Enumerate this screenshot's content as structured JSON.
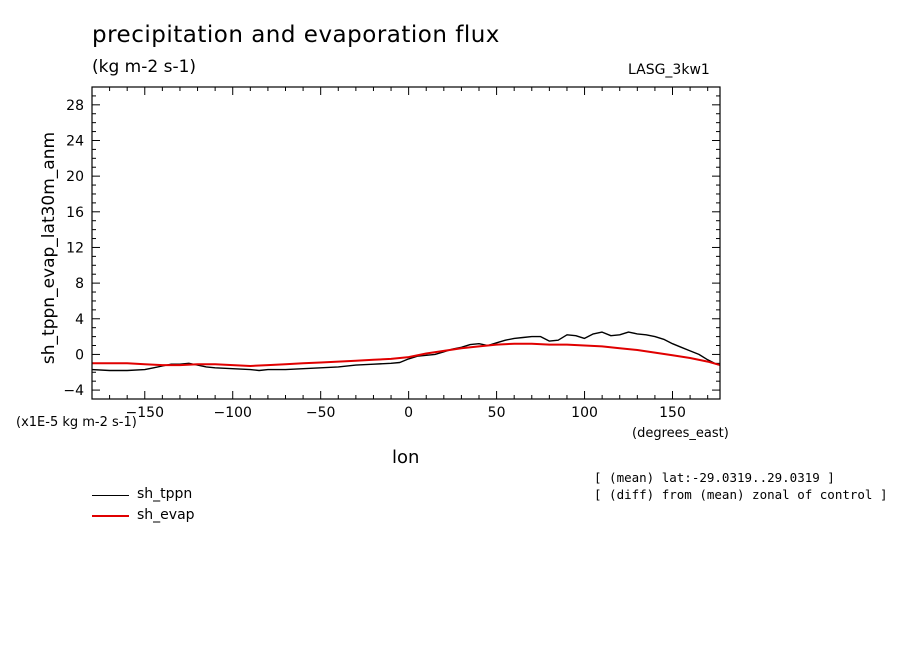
{
  "header": {
    "title": "precipitation and evaporation flux",
    "units": "(kg m-2 s-1)",
    "model": "LASG_3kw1"
  },
  "notes": {
    "mean": "[ (mean) lat:-29.0319..29.0319 ]",
    "diff": "[ (diff) from (mean) zonal of control ]"
  },
  "colors": {
    "sh_tppn": "#000000",
    "sh_evap": "#e00000"
  },
  "chart_data": {
    "type": "line",
    "title": "precipitation and evaporation flux",
    "subtitle": "(kg m-2 s-1)",
    "xlabel": "lon",
    "ylabel": "sh_tppn_evap_lat30m_anm",
    "x_units": "(degrees_east)",
    "y_units": "(x1E-5 kg m-2 s-1)",
    "xlim": [
      -180,
      177
    ],
    "ylim": [
      -5,
      30
    ],
    "xticks": [
      -150,
      -100,
      -50,
      0,
      50,
      100,
      150
    ],
    "yticks": [
      -4,
      0,
      4,
      8,
      12,
      16,
      20,
      24,
      28
    ],
    "legend_position": "bottom-left",
    "series": [
      {
        "name": "sh_tppn",
        "color": "#000000",
        "x": [
          -180,
          -170,
          -160,
          -150,
          -145,
          -140,
          -135,
          -130,
          -125,
          -120,
          -115,
          -110,
          -100,
          -90,
          -85,
          -80,
          -70,
          -60,
          -50,
          -40,
          -30,
          -20,
          -10,
          -5,
          0,
          5,
          10,
          15,
          20,
          25,
          30,
          35,
          40,
          45,
          50,
          55,
          60,
          65,
          70,
          75,
          80,
          85,
          90,
          95,
          100,
          105,
          110,
          115,
          120,
          125,
          130,
          135,
          140,
          145,
          150,
          155,
          160,
          165,
          170,
          175,
          177
        ],
        "y": [
          -1.7,
          -1.8,
          -1.8,
          -1.7,
          -1.5,
          -1.3,
          -1.1,
          -1.1,
          -1.0,
          -1.2,
          -1.4,
          -1.5,
          -1.6,
          -1.7,
          -1.8,
          -1.7,
          -1.7,
          -1.6,
          -1.5,
          -1.4,
          -1.2,
          -1.1,
          -1.0,
          -0.9,
          -0.5,
          -0.2,
          -0.1,
          0.0,
          0.3,
          0.6,
          0.8,
          1.1,
          1.2,
          1.0,
          1.3,
          1.6,
          1.8,
          1.9,
          2.0,
          2.0,
          1.5,
          1.6,
          2.2,
          2.1,
          1.8,
          2.3,
          2.5,
          2.1,
          2.2,
          2.5,
          2.3,
          2.2,
          2.0,
          1.7,
          1.2,
          0.8,
          0.4,
          0.0,
          -0.6,
          -1.1,
          -1.2
        ]
      },
      {
        "name": "sh_evap",
        "color": "#e00000",
        "x": [
          -180,
          -170,
          -160,
          -150,
          -140,
          -130,
          -120,
          -110,
          -100,
          -90,
          -80,
          -70,
          -60,
          -50,
          -40,
          -30,
          -20,
          -10,
          0,
          10,
          20,
          30,
          40,
          50,
          60,
          70,
          80,
          90,
          100,
          110,
          120,
          130,
          140,
          150,
          160,
          170,
          177
        ],
        "y": [
          -1.0,
          -1.0,
          -1.0,
          -1.1,
          -1.2,
          -1.2,
          -1.1,
          -1.1,
          -1.2,
          -1.3,
          -1.2,
          -1.1,
          -1.0,
          -0.9,
          -0.8,
          -0.7,
          -0.6,
          -0.5,
          -0.3,
          0.1,
          0.4,
          0.7,
          0.9,
          1.1,
          1.2,
          1.2,
          1.1,
          1.1,
          1.0,
          0.9,
          0.7,
          0.5,
          0.2,
          -0.1,
          -0.4,
          -0.8,
          -1.2
        ]
      }
    ]
  }
}
